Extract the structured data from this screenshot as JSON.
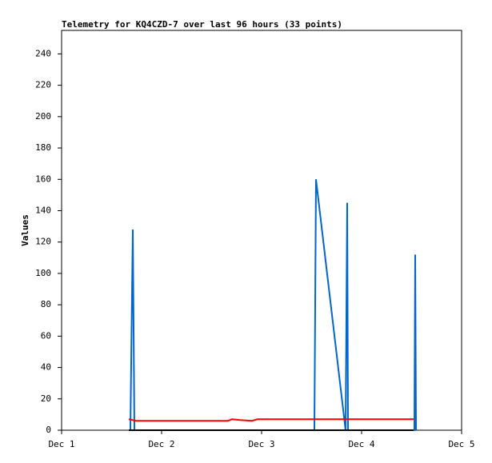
{
  "chart_data": {
    "type": "line",
    "title": "Telemetry for KQ4CZD-7 over last 96 hours (33 points)",
    "y_label": "Values",
    "xlim": [
      1,
      5
    ],
    "xticks": [
      {
        "value": 1,
        "label": "Dec 1"
      },
      {
        "value": 2,
        "label": "Dec 2"
      },
      {
        "value": 3,
        "label": "Dec 3"
      },
      {
        "value": 4,
        "label": "Dec 4"
      },
      {
        "value": 5,
        "label": "Dec 5"
      }
    ],
    "ylim": [
      0,
      255
    ],
    "yticks": [
      0,
      20,
      40,
      60,
      80,
      100,
      120,
      140,
      160,
      180,
      200,
      220,
      240
    ],
    "series": [
      {
        "color": "#0066cc",
        "x": [
          1.688,
          1.712,
          1.72,
          1.728,
          3.528,
          3.536,
          3.544,
          3.84,
          3.848,
          3.856,
          3.864,
          4.528,
          4.536,
          4.544
        ],
        "values": [
          0,
          128,
          65,
          0,
          0,
          80,
          160,
          0,
          72,
          145,
          0,
          0,
          112,
          0
        ]
      },
      {
        "color": "#ff0000",
        "x": [
          1.672,
          1.744,
          2.664,
          2.704,
          2.784,
          2.904,
          2.96,
          4.52
        ],
        "values": [
          7,
          6,
          6,
          7,
          6.5,
          6,
          7,
          7
        ]
      },
      {
        "color": "#000000",
        "x": [
          1.672,
          4.52
        ],
        "values": [
          0,
          0
        ]
      }
    ]
  }
}
